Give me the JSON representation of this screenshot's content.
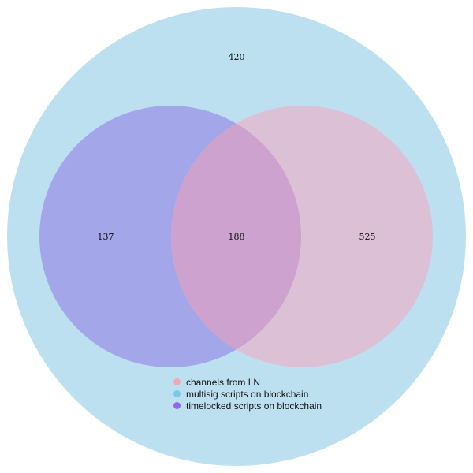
{
  "diagram": {
    "type": "venn",
    "sets": [
      {
        "id": "multisig",
        "label": "multisig scripts on blockchain",
        "color": "#bde0f0"
      },
      {
        "id": "timelocked",
        "label": "timelocked scripts on blockchain",
        "color": "#a4a6ea"
      },
      {
        "id": "ln",
        "label": "channels from LN",
        "color": "#dcc1d6"
      }
    ],
    "regions": {
      "multisig_only": "420",
      "timelocked_only": "137",
      "timelocked_and_ln": "188",
      "ln_only": "525"
    },
    "overlap_color": "#cda2cf"
  },
  "legend": {
    "items": [
      {
        "label": "channels from LN",
        "color": "#f0a8b8"
      },
      {
        "label": "multisig scripts on blockchain",
        "color": "#7ec8e6"
      },
      {
        "label": "timelocked scripts on blockchain",
        "color": "#9466f0"
      }
    ]
  }
}
